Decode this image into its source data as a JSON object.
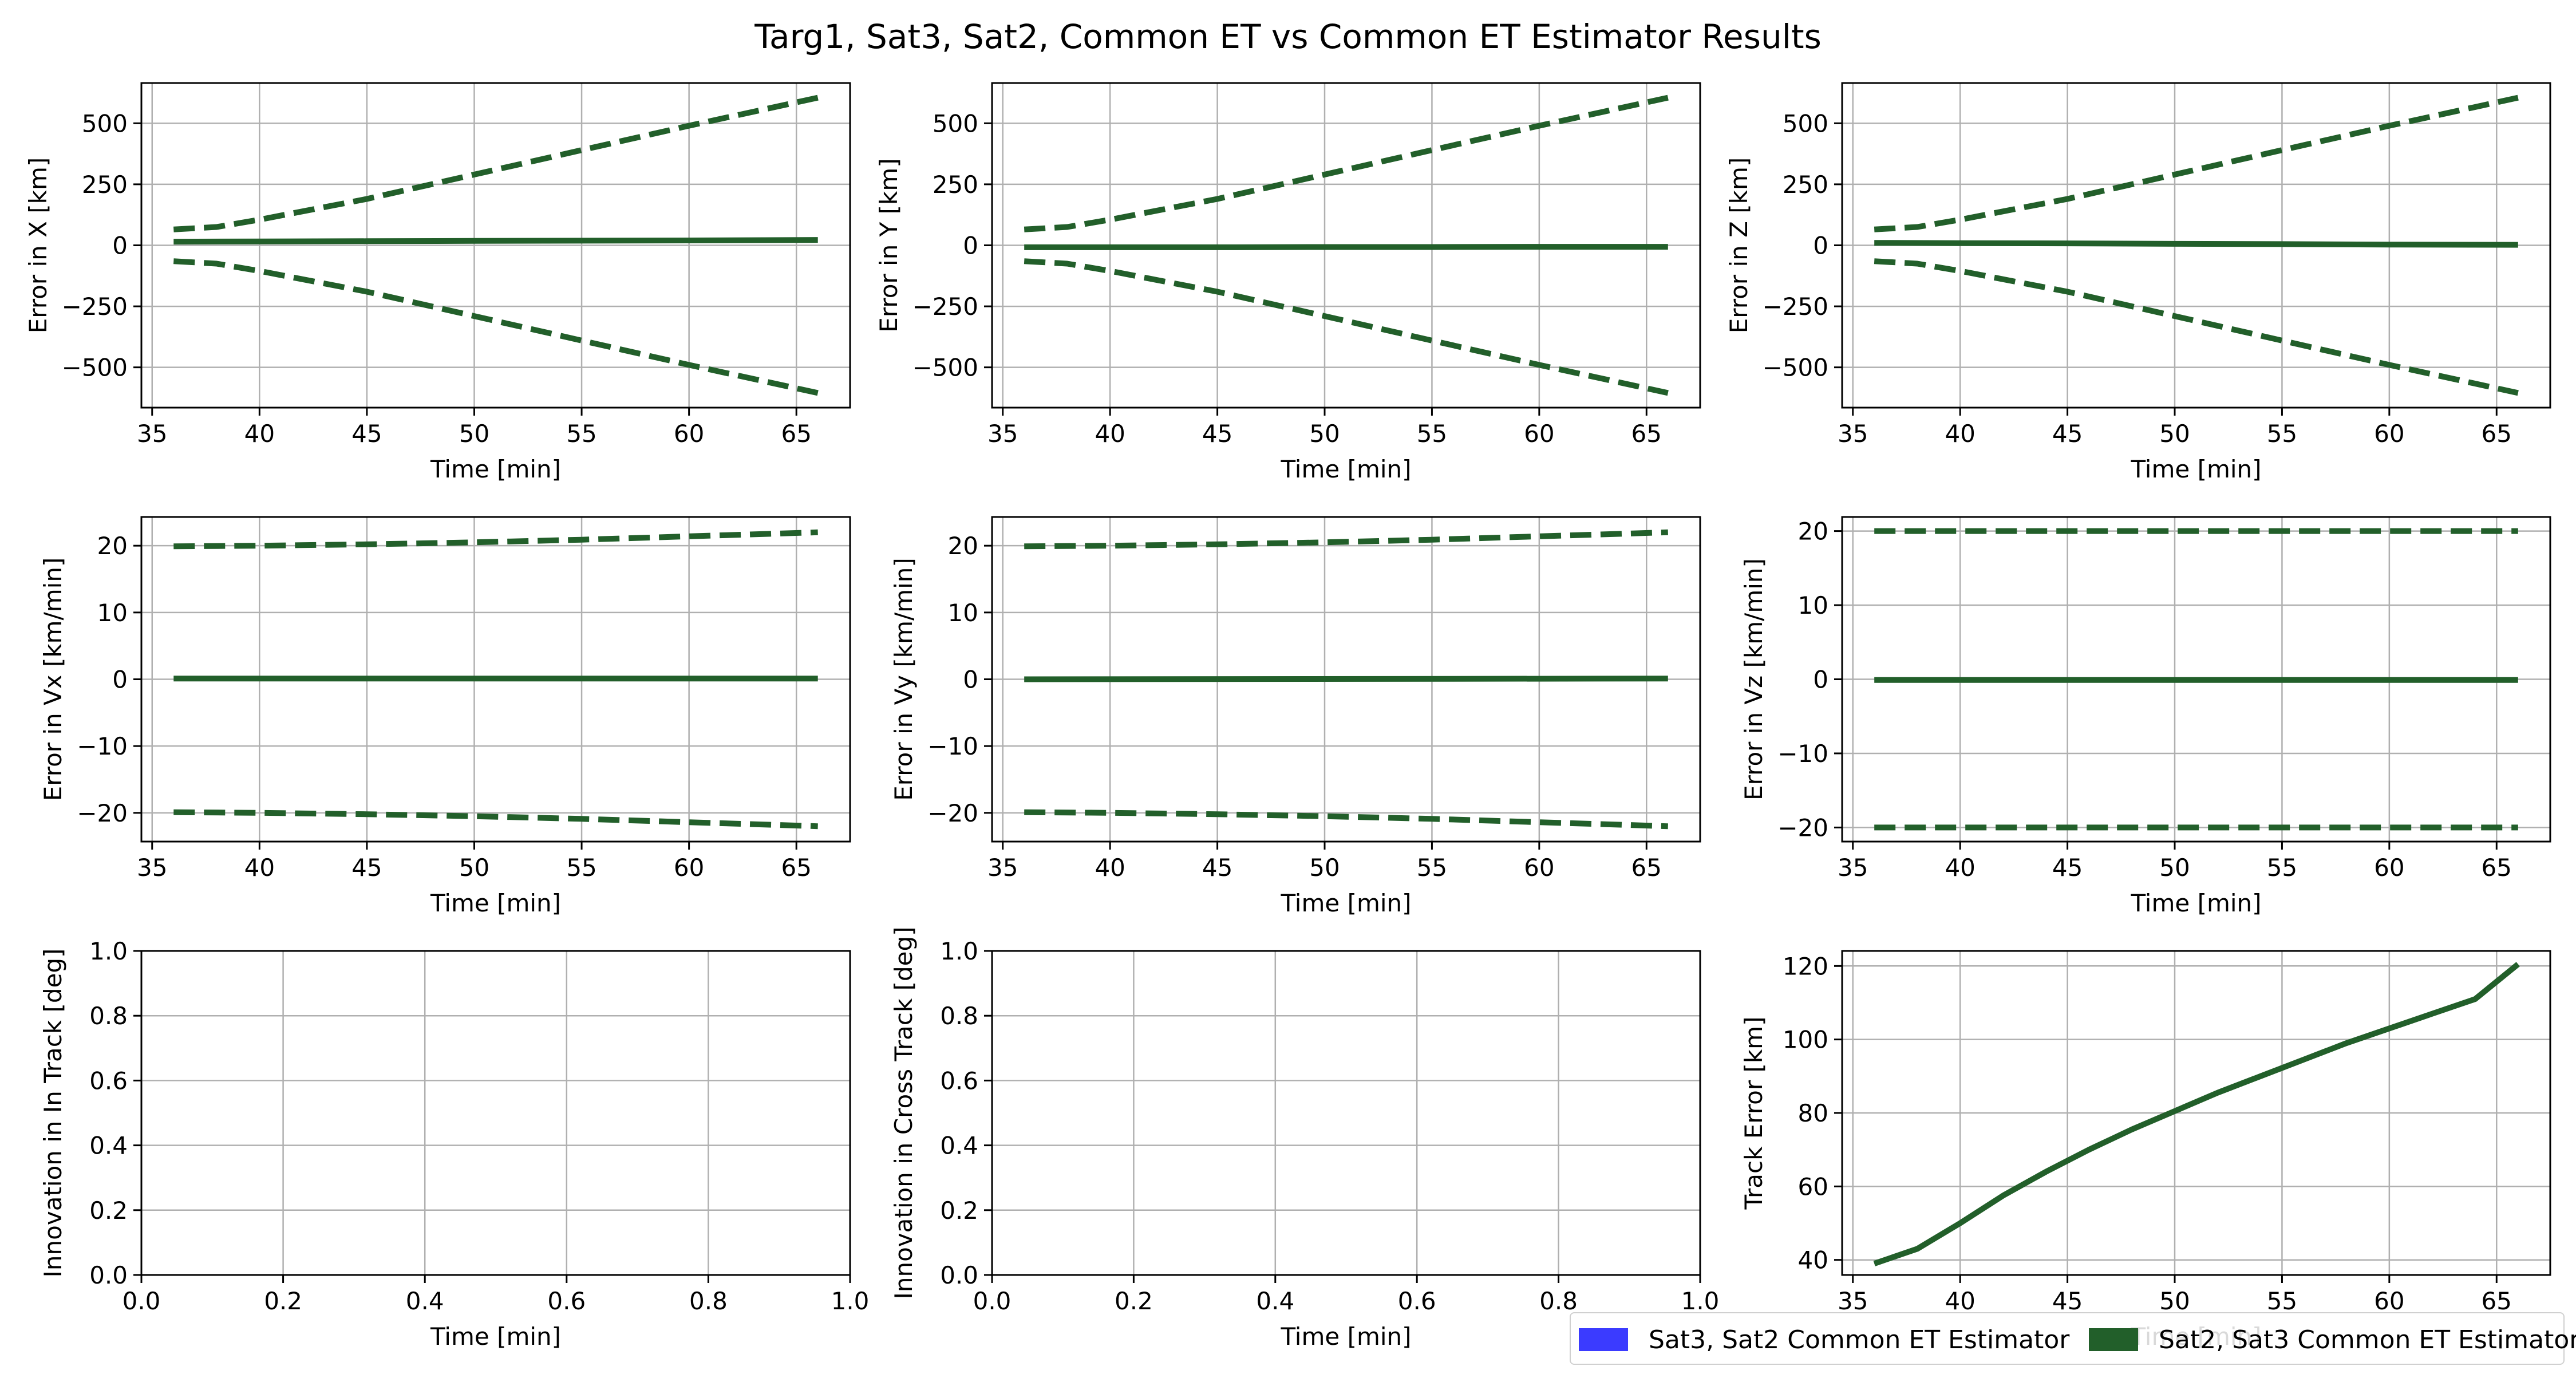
{
  "figure": {
    "title": "Targ1, Sat3, Sat2, Common ET vs Common ET Estimator Results"
  },
  "colors": {
    "sat3_sat2": "#3b3bff",
    "sat2_sat3": "#225f2a",
    "grid": "#b0b0b0",
    "axis": "#000000"
  },
  "legend": {
    "placement": "lower-right",
    "entries": [
      {
        "label": "Sat3, Sat2 Common ET Estimator",
        "color": "#3b3bff"
      },
      {
        "label": "Sat2, Sat3 Common ET Estimator",
        "color": "#225f2a"
      }
    ]
  },
  "chart_data": [
    {
      "type": "line",
      "xlabel": "Time [min]",
      "ylabel": "Error in X [km]",
      "xlim": [
        34.5,
        67.5
      ],
      "ylim": [
        -665,
        665
      ],
      "xticks": [
        35,
        40,
        45,
        50,
        55,
        60,
        65
      ],
      "yticks": [
        -500,
        -250,
        0,
        250,
        500
      ],
      "ytick_labels": [
        "−500",
        "−250",
        "0",
        "250",
        "500"
      ],
      "grid": true,
      "series": [
        {
          "style": "solid",
          "color": "#225f2a",
          "x": [
            36,
            40,
            45,
            50,
            55,
            60,
            66
          ],
          "y": [
            15,
            16,
            17,
            18,
            19,
            20,
            22
          ]
        },
        {
          "style": "dashed",
          "color": "#225f2a",
          "x": [
            36,
            38,
            40,
            45,
            50,
            55,
            60,
            66
          ],
          "y": [
            65,
            75,
            105,
            190,
            290,
            390,
            490,
            605
          ]
        },
        {
          "style": "dashed",
          "color": "#225f2a",
          "x": [
            36,
            38,
            40,
            45,
            50,
            55,
            60,
            66
          ],
          "y": [
            -65,
            -75,
            -105,
            -190,
            -290,
            -390,
            -490,
            -605
          ]
        }
      ]
    },
    {
      "type": "line",
      "xlabel": "Time [min]",
      "ylabel": "Error in Y [km]",
      "xlim": [
        34.5,
        67.5
      ],
      "ylim": [
        -665,
        665
      ],
      "xticks": [
        35,
        40,
        45,
        50,
        55,
        60,
        65
      ],
      "yticks": [
        -500,
        -250,
        0,
        250,
        500
      ],
      "ytick_labels": [
        "−500",
        "−250",
        "0",
        "250",
        "500"
      ],
      "grid": true,
      "series": [
        {
          "style": "solid",
          "color": "#225f2a",
          "x": [
            36,
            40,
            45,
            50,
            55,
            60,
            66
          ],
          "y": [
            -8,
            -8,
            -8,
            -7,
            -7,
            -6,
            -6
          ]
        },
        {
          "style": "dashed",
          "color": "#225f2a",
          "x": [
            36,
            38,
            40,
            45,
            50,
            55,
            60,
            66
          ],
          "y": [
            65,
            75,
            105,
            190,
            290,
            390,
            490,
            605
          ]
        },
        {
          "style": "dashed",
          "color": "#225f2a",
          "x": [
            36,
            38,
            40,
            45,
            50,
            55,
            60,
            66
          ],
          "y": [
            -65,
            -75,
            -105,
            -190,
            -290,
            -390,
            -490,
            -605
          ]
        }
      ]
    },
    {
      "type": "line",
      "xlabel": "Time [min]",
      "ylabel": "Error in Z [km]",
      "xlim": [
        34.5,
        67.5
      ],
      "ylim": [
        -665,
        665
      ],
      "xticks": [
        35,
        40,
        45,
        50,
        55,
        60,
        65
      ],
      "yticks": [
        -500,
        -250,
        0,
        250,
        500
      ],
      "ytick_labels": [
        "−500",
        "−250",
        "0",
        "250",
        "500"
      ],
      "grid": true,
      "series": [
        {
          "style": "solid",
          "color": "#225f2a",
          "x": [
            36,
            40,
            45,
            50,
            55,
            60,
            66
          ],
          "y": [
            10,
            9,
            8,
            6,
            5,
            3,
            2
          ]
        },
        {
          "style": "dashed",
          "color": "#225f2a",
          "x": [
            36,
            38,
            40,
            45,
            50,
            55,
            60,
            66
          ],
          "y": [
            65,
            75,
            105,
            190,
            290,
            390,
            490,
            605
          ]
        },
        {
          "style": "dashed",
          "color": "#225f2a",
          "x": [
            36,
            38,
            40,
            45,
            50,
            55,
            60,
            66
          ],
          "y": [
            -65,
            -75,
            -105,
            -190,
            -290,
            -390,
            -490,
            -605
          ]
        }
      ]
    },
    {
      "type": "line",
      "xlabel": "Time [min]",
      "ylabel": "Error in Vx [km/min]",
      "xlim": [
        34.5,
        67.5
      ],
      "ylim": [
        -24.3,
        24.3
      ],
      "xticks": [
        35,
        40,
        45,
        50,
        55,
        60,
        65
      ],
      "yticks": [
        -20,
        -10,
        0,
        10,
        20
      ],
      "ytick_labels": [
        "−20",
        "−10",
        "0",
        "10",
        "20"
      ],
      "grid": true,
      "series": [
        {
          "style": "solid",
          "color": "#225f2a",
          "x": [
            36,
            66
          ],
          "y": [
            0.1,
            0.1
          ]
        },
        {
          "style": "dashed",
          "color": "#225f2a",
          "x": [
            36,
            40,
            45,
            50,
            55,
            60,
            66
          ],
          "y": [
            19.9,
            20.0,
            20.2,
            20.5,
            20.9,
            21.4,
            22.0
          ]
        },
        {
          "style": "dashed",
          "color": "#225f2a",
          "x": [
            36,
            40,
            45,
            50,
            55,
            60,
            66
          ],
          "y": [
            -19.9,
            -20.0,
            -20.2,
            -20.5,
            -20.9,
            -21.4,
            -22.0
          ]
        }
      ]
    },
    {
      "type": "line",
      "xlabel": "Time [min]",
      "ylabel": "Error in Vy [km/min]",
      "xlim": [
        34.5,
        67.5
      ],
      "ylim": [
        -24.3,
        24.3
      ],
      "xticks": [
        35,
        40,
        45,
        50,
        55,
        60,
        65
      ],
      "yticks": [
        -20,
        -10,
        0,
        10,
        20
      ],
      "ytick_labels": [
        "−20",
        "−10",
        "0",
        "10",
        "20"
      ],
      "grid": true,
      "series": [
        {
          "style": "solid",
          "color": "#225f2a",
          "x": [
            36,
            66
          ],
          "y": [
            0.0,
            0.1
          ]
        },
        {
          "style": "dashed",
          "color": "#225f2a",
          "x": [
            36,
            40,
            45,
            50,
            55,
            60,
            66
          ],
          "y": [
            19.9,
            20.0,
            20.2,
            20.5,
            20.9,
            21.4,
            22.0
          ]
        },
        {
          "style": "dashed",
          "color": "#225f2a",
          "x": [
            36,
            40,
            45,
            50,
            55,
            60,
            66
          ],
          "y": [
            -19.9,
            -20.0,
            -20.2,
            -20.5,
            -20.9,
            -21.4,
            -22.0
          ]
        }
      ]
    },
    {
      "type": "line",
      "xlabel": "Time [min]",
      "ylabel": "Error in Vz [km/min]",
      "xlim": [
        34.5,
        67.5
      ],
      "ylim": [
        -21.9,
        21.9
      ],
      "xticks": [
        35,
        40,
        45,
        50,
        55,
        60,
        65
      ],
      "yticks": [
        -20,
        -10,
        0,
        10,
        20
      ],
      "ytick_labels": [
        "−20",
        "−10",
        "0",
        "10",
        "20"
      ],
      "grid": true,
      "series": [
        {
          "style": "solid",
          "color": "#225f2a",
          "x": [
            36,
            66
          ],
          "y": [
            -0.1,
            -0.1
          ]
        },
        {
          "style": "dashed",
          "color": "#225f2a",
          "x": [
            36,
            66
          ],
          "y": [
            20.0,
            20.0
          ]
        },
        {
          "style": "dashed",
          "color": "#225f2a",
          "x": [
            36,
            66
          ],
          "y": [
            -20.0,
            -20.0
          ]
        }
      ]
    },
    {
      "type": "line",
      "xlabel": "Time [min]",
      "ylabel": "Innovation in In Track [deg]",
      "xlim": [
        0,
        1
      ],
      "ylim": [
        0,
        1
      ],
      "xticks": [
        0,
        0.2,
        0.4,
        0.6,
        0.8,
        1.0
      ],
      "xtick_labels": [
        "0.0",
        "0.2",
        "0.4",
        "0.6",
        "0.8",
        "1.0"
      ],
      "yticks": [
        0,
        0.2,
        0.4,
        0.6,
        0.8,
        1.0
      ],
      "ytick_labels": [
        "0.0",
        "0.2",
        "0.4",
        "0.6",
        "0.8",
        "1.0"
      ],
      "grid": true,
      "series": []
    },
    {
      "type": "line",
      "xlabel": "Time [min]",
      "ylabel": "Innovation in Cross Track [deg]",
      "xlim": [
        0,
        1
      ],
      "ylim": [
        0,
        1
      ],
      "xticks": [
        0,
        0.2,
        0.4,
        0.6,
        0.8,
        1.0
      ],
      "xtick_labels": [
        "0.0",
        "0.2",
        "0.4",
        "0.6",
        "0.8",
        "1.0"
      ],
      "yticks": [
        0,
        0.2,
        0.4,
        0.6,
        0.8,
        1.0
      ],
      "ytick_labels": [
        "0.0",
        "0.2",
        "0.4",
        "0.6",
        "0.8",
        "1.0"
      ],
      "grid": true,
      "series": []
    },
    {
      "type": "line",
      "xlabel": "Time [min]",
      "ylabel": "Track Error [km]",
      "xlim": [
        34.5,
        67.5
      ],
      "ylim": [
        35.9,
        124.1
      ],
      "xticks": [
        35,
        40,
        45,
        50,
        55,
        60,
        65
      ],
      "yticks": [
        40,
        60,
        80,
        100,
        120
      ],
      "grid": true,
      "series": [
        {
          "style": "solid",
          "color": "#225f2a",
          "x": [
            36,
            38,
            40,
            42,
            44,
            46,
            48,
            50,
            52,
            54,
            56,
            58,
            60,
            62,
            64,
            66
          ],
          "y": [
            39,
            43,
            50,
            57.5,
            64,
            70,
            75.5,
            80.5,
            85.5,
            90,
            94.5,
            99,
            103,
            107,
            111,
            120.5
          ]
        }
      ]
    }
  ]
}
